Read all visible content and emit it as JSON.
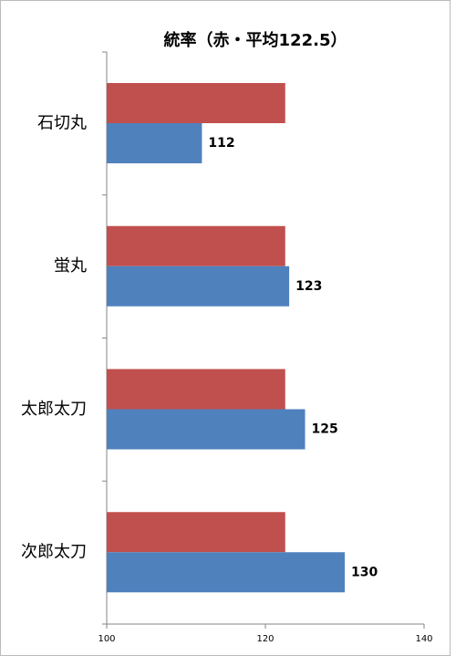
{
  "chart_data": {
    "type": "bar",
    "orientation": "horizontal",
    "title": "統率（赤・平均122.5）",
    "categories": [
      "石切丸",
      "蛍丸",
      "太郎太刀",
      "次郎太刀"
    ],
    "series": [
      {
        "color": "#c0504d",
        "values": [
          122.5,
          122.5,
          122.5,
          122.5
        ]
      },
      {
        "color": "#4f81bd",
        "values": [
          112,
          123,
          125,
          130
        ],
        "data_labels": true
      }
    ],
    "xlim": [
      100,
      140
    ],
    "xticks": [
      100,
      120,
      140
    ],
    "grid": false
  }
}
